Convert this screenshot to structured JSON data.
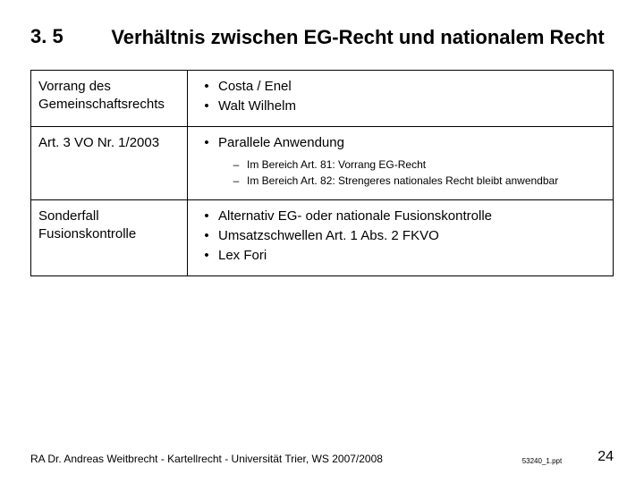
{
  "section_number": "3. 5",
  "title": "Verhältnis zwischen EG-Recht und nationalem Recht",
  "rows": [
    {
      "label": "Vorrang des Gemeinschaftsrechts",
      "bullets": [
        {
          "text": "Costa / Enel"
        },
        {
          "text": "Walt Wilhelm"
        }
      ]
    },
    {
      "label": "Art. 3 VO Nr. 1/2003",
      "bullets": [
        {
          "text": "Parallele Anwendung",
          "sub": [
            "Im Bereich Art. 81: Vorrang EG-Recht",
            "Im Bereich Art. 82: Strengeres nationales Recht bleibt anwendbar"
          ]
        }
      ]
    },
    {
      "label": "Sonderfall Fusionskontrolle",
      "bullets": [
        {
          "text": "Alternativ EG- oder nationale Fusionskontrolle"
        },
        {
          "text": "Umsatzschwellen Art. 1 Abs. 2 FKVO"
        },
        {
          "text": "Lex Fori"
        }
      ]
    }
  ],
  "footer_left": "RA Dr. Andreas Weitbrecht - Kartellrecht - Universität Trier, WS 2007/2008",
  "footer_mid": "53240_1.ppt",
  "page_number": "24"
}
